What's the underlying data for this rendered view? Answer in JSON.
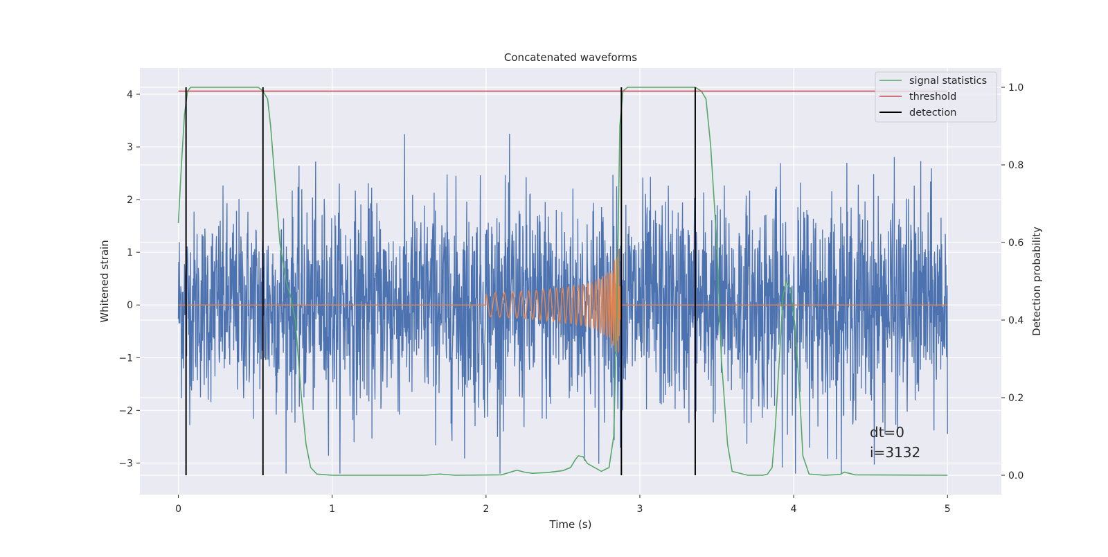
{
  "chart_data": {
    "type": "line",
    "title": "Concatenated waveforms",
    "xlabel": "Time (s)",
    "ylabel": "Whitened strain",
    "ylabel_right": "Detection probability",
    "xlim": [
      -0.25,
      5.35
    ],
    "ylim_left": [
      -3.6,
      4.5
    ],
    "ylim_right": [
      -0.05,
      1.05
    ],
    "xticks": [
      0,
      1,
      2,
      3,
      4,
      5
    ],
    "yticks_left": [
      -3,
      -2,
      -1,
      0,
      1,
      2,
      3,
      4
    ],
    "yticks_right": [
      0.0,
      0.2,
      0.4,
      0.6,
      0.8,
      1.0
    ],
    "xtick_labels": [
      "0",
      "1",
      "2",
      "3",
      "4",
      "5"
    ],
    "ytick_labels_left": [
      "−3",
      "−2",
      "−1",
      "0",
      "1",
      "2",
      "3",
      "4"
    ],
    "ytick_labels_right": [
      "0.0",
      "0.2",
      "0.4",
      "0.6",
      "0.8",
      "1.0"
    ],
    "grid": true,
    "legend_position": "top-right",
    "series": [
      {
        "label_key": "strain",
        "axis": "left",
        "color": "#4c72b0",
        "description": "noise, dense, about +/-2.5",
        "envelope_x": [
          0,
          0.5,
          1,
          1.5,
          2,
          2.5,
          3,
          3.5,
          4,
          4.5,
          5
        ],
        "envelope_y": [
          1.9,
          2.1,
          2.2,
          2.2,
          2.3,
          2.3,
          2.3,
          2.2,
          2.3,
          2.3,
          2.2
        ],
        "x_range": [
          0,
          5
        ]
      },
      {
        "label_key": "chirp",
        "axis": "left",
        "color": "#dd8452",
        "x": [
          0,
          2.0,
          2.2,
          2.4,
          2.6,
          2.7,
          2.8,
          2.85,
          2.87,
          2.88,
          5
        ],
        "amplitude": [
          0,
          0.22,
          0.25,
          0.3,
          0.38,
          0.45,
          0.65,
          0.95,
          1.2,
          0,
          0
        ]
      },
      {
        "name": "signal statistics",
        "axis": "right",
        "color": "#55a868",
        "x": [
          0,
          0.02,
          0.04,
          0.06,
          0.08,
          0.1,
          0.52,
          0.55,
          0.58,
          0.6,
          0.63,
          0.66,
          0.7,
          0.73,
          0.76,
          0.8,
          0.83,
          0.86,
          0.9,
          1.0,
          1.6,
          1.7,
          1.8,
          2.1,
          2.15,
          2.2,
          2.25,
          2.3,
          2.4,
          2.5,
          2.55,
          2.58,
          2.6,
          2.63,
          2.66,
          2.75,
          2.8,
          2.83,
          2.85,
          2.87,
          2.89,
          2.92,
          2.96,
          3.36,
          3.4,
          3.43,
          3.46,
          3.5,
          3.53,
          3.57,
          3.6,
          3.7,
          3.8,
          3.83,
          3.86,
          3.88,
          3.91,
          3.93,
          3.95,
          3.98,
          4.01,
          4.04,
          4.06,
          4.1,
          4.2,
          4.3,
          4.33,
          4.36,
          4.4,
          5.0
        ],
        "y": [
          0.65,
          0.8,
          0.93,
          0.99,
          1.0,
          1.0,
          1.0,
          0.99,
          0.97,
          0.9,
          0.75,
          0.6,
          0.5,
          0.46,
          0.4,
          0.2,
          0.08,
          0.02,
          0.003,
          0.0,
          0.0,
          0.003,
          0.0,
          0.001,
          0.007,
          0.013,
          0.008,
          0.005,
          0.007,
          0.012,
          0.02,
          0.04,
          0.05,
          0.048,
          0.03,
          0.01,
          0.02,
          0.1,
          0.4,
          0.9,
          0.99,
          1.0,
          1.0,
          1.0,
          0.99,
          0.97,
          0.85,
          0.6,
          0.3,
          0.08,
          0.01,
          0.0,
          0.0,
          0.003,
          0.02,
          0.12,
          0.32,
          0.46,
          0.5,
          0.48,
          0.38,
          0.2,
          0.05,
          0.003,
          0.0,
          0.002,
          0.008,
          0.005,
          0.001,
          0.0
        ]
      },
      {
        "name": "threshold",
        "axis": "right",
        "color": "#c44e52",
        "x": [
          0,
          5
        ],
        "y": [
          0.99,
          0.99
        ]
      },
      {
        "name": "detection",
        "axis": "right",
        "color": "#000000",
        "x_positions": [
          0.05,
          0.55,
          2.88,
          3.36
        ],
        "y_range": [
          0.0,
          1.0
        ]
      }
    ],
    "annotations": [
      "dt=0",
      "i=3132"
    ]
  },
  "legend": [
    {
      "name": "signal statistics",
      "color": "#55a868"
    },
    {
      "name": "threshold",
      "color": "#c44e52"
    },
    {
      "name": "detection",
      "color": "#000000"
    }
  ]
}
